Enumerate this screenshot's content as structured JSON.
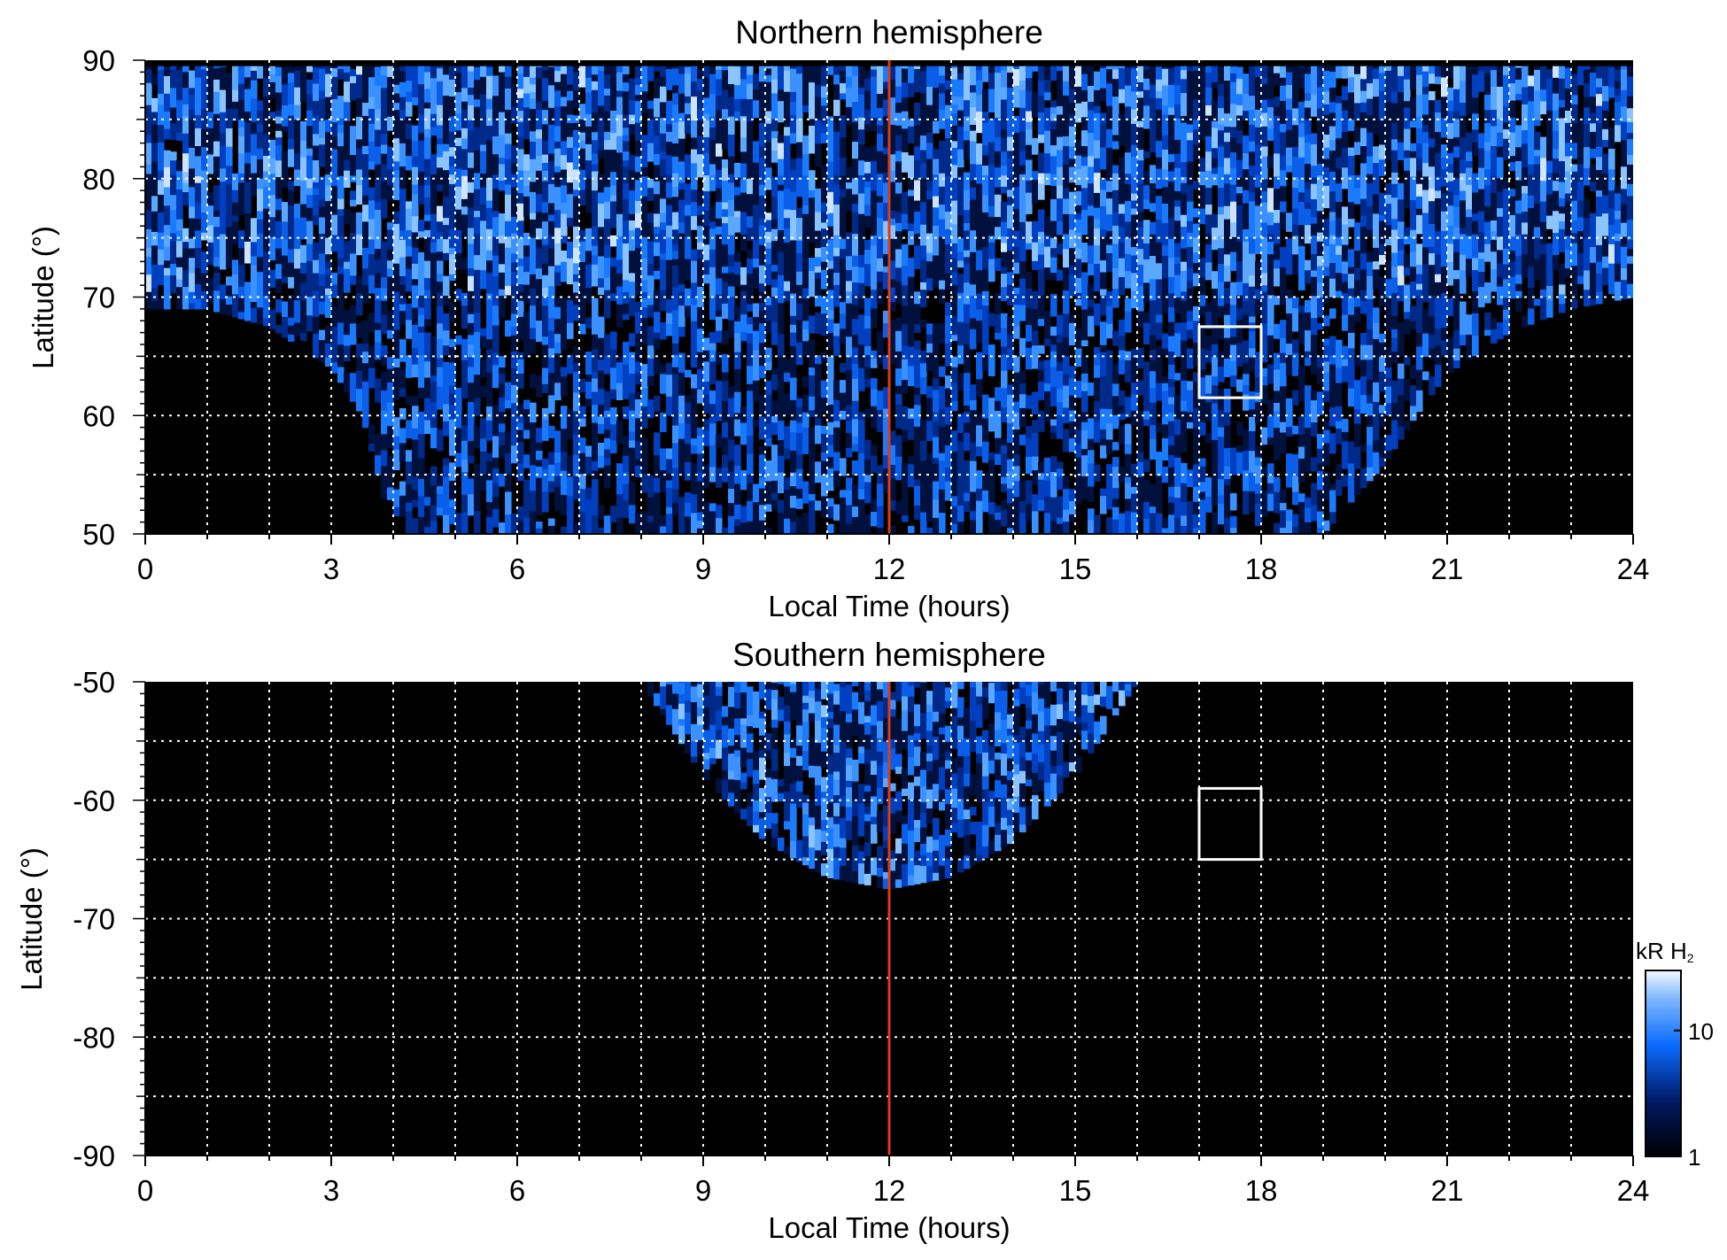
{
  "colors": {
    "background": "#000000",
    "emission_low": "#001a66",
    "emission_mid": "#0a6cff",
    "emission_high": "#e8f2ff",
    "grid": "#ffffff",
    "noon_line": "#e03a10",
    "box": "#ffffff"
  },
  "chart_data": [
    {
      "type": "heatmap",
      "title": "Northern hemisphere",
      "xlabel": "Local Time (hours)",
      "ylabel": "Latitude (°)",
      "xlim": [
        0,
        24
      ],
      "ylim": [
        50,
        90
      ],
      "xticks": [
        0,
        3,
        6,
        9,
        12,
        15,
        18,
        21,
        24
      ],
      "yticks": [
        50,
        60,
        70,
        80,
        90
      ],
      "grid": true,
      "grid_x_step": 1,
      "grid_y_step": 5,
      "vertical_line": {
        "x": 12,
        "color": "#e03a10"
      },
      "box": {
        "x": [
          17,
          18
        ],
        "y": [
          61.5,
          67.5
        ]
      },
      "coverage": "emission present poleward of ~69° at all local times, extending to 50° between ~4 and ~20 LT",
      "boundary_curve": {
        "lt": [
          0,
          1,
          2,
          3,
          3.5,
          4,
          5,
          6,
          7,
          8,
          9,
          10,
          11,
          12,
          13,
          14,
          15,
          16,
          17,
          18,
          19,
          20,
          20.5,
          21,
          22,
          23,
          24
        ],
        "lat": [
          69,
          69,
          67.5,
          64,
          60,
          50,
          50,
          50,
          50,
          50,
          50,
          50,
          50,
          50,
          50,
          50,
          50,
          50,
          50,
          50,
          50,
          56,
          60,
          63.5,
          67,
          69,
          70
        ]
      }
    },
    {
      "type": "heatmap",
      "title": "Southern hemisphere",
      "xlabel": "Local Time (hours)",
      "ylabel": "Latitude (°)",
      "xlim": [
        0,
        24
      ],
      "ylim": [
        -90,
        -50
      ],
      "xticks": [
        0,
        3,
        6,
        9,
        12,
        15,
        18,
        21,
        24
      ],
      "yticks": [
        -90,
        -80,
        -70,
        -60,
        -50
      ],
      "grid": true,
      "grid_x_step": 1,
      "grid_y_step": 5,
      "vertical_line": {
        "x": 12,
        "color": "#e03a10"
      },
      "box": {
        "x": [
          17,
          18
        ],
        "y": [
          -65,
          -59
        ]
      },
      "coverage": "emission present only between ~8 and ~16 LT, from -50° down to about -68° near noon",
      "boundary_curve": {
        "lt": [
          8,
          9,
          10,
          11,
          12,
          13,
          14,
          15,
          16
        ],
        "lat": [
          -50,
          -58,
          -63.5,
          -66.5,
          -67.5,
          -66.5,
          -63.5,
          -58,
          -50
        ]
      }
    }
  ],
  "colorbar": {
    "label_prefix": "kR H",
    "label_subscript": "2",
    "scale": "log",
    "range": [
      1,
      30
    ],
    "ticks": [
      {
        "value": 1,
        "label": "1"
      },
      {
        "value": 10,
        "label": "10"
      }
    ]
  }
}
